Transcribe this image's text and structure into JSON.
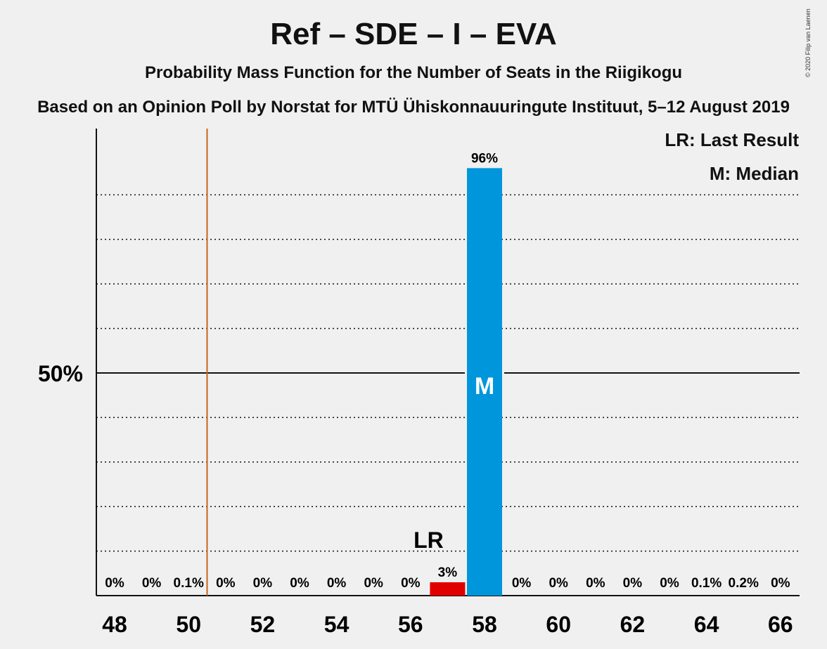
{
  "header": {
    "title": "Ref – SDE – I – EVA",
    "subtitle": "Probability Mass Function for the Number of Seats in the Riigikogu",
    "source": "Based on an Opinion Poll by Norstat for MTÜ Ühiskonnauuringute Instituut, 5–12 August 2019",
    "copyright": "© 2020 Filip van Laenen"
  },
  "legend": {
    "last_result": "LR: Last Result",
    "median": "M: Median"
  },
  "chart_data": {
    "type": "bar",
    "x": [
      48,
      49,
      50,
      51,
      52,
      53,
      54,
      55,
      56,
      57,
      58,
      59,
      60,
      61,
      62,
      63,
      64,
      65,
      66
    ],
    "values": [
      0,
      0,
      0.1,
      0,
      0,
      0,
      0,
      0,
      0,
      3,
      96,
      0,
      0,
      0,
      0,
      0,
      0.1,
      0.2,
      0
    ],
    "bar_labels": [
      "0%",
      "0%",
      "0.1%",
      "0%",
      "0%",
      "0%",
      "0%",
      "0%",
      "0%",
      "3%",
      "96%",
      "0%",
      "0%",
      "0%",
      "0%",
      "0%",
      "0.1%",
      "0.2%",
      "0%"
    ],
    "x_tick_labels": [
      "48",
      "50",
      "52",
      "54",
      "56",
      "58",
      "60",
      "62",
      "64",
      "66"
    ],
    "x_ticks": [
      48,
      50,
      52,
      54,
      56,
      58,
      60,
      62,
      64,
      66
    ],
    "y_tick_label": "50%",
    "y_tick_value": 50,
    "ylim": [
      0,
      100
    ],
    "majority_line": 50.5,
    "last_result": {
      "seat": 57,
      "label": "LR"
    },
    "median": {
      "seat": 58,
      "label": "M"
    },
    "colors": {
      "last_result_bar": "#e00000",
      "median_bar": "#0096dc",
      "majority_line": "#c8641e",
      "grid": "#111111",
      "background": "#f0f0f0"
    }
  }
}
